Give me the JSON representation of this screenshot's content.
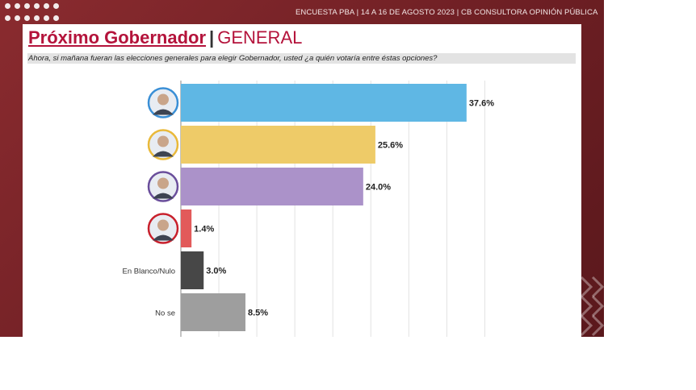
{
  "header": {
    "survey_info": "ENCUESTA PBA | 14 A 16 DE AGOSTO 2023 | CB CONSULTORA OPINIÓN PÚBLICA",
    "title_main": "Próximo Gobernador",
    "title_sep": "|",
    "title_sub": "GENERAL",
    "question": "Ahora, si mañana fueran las elecciones generales para elegir Gobernador, usted ¿a quién votaría entre éstas opciones?"
  },
  "chart_data": {
    "type": "bar",
    "orientation": "horizontal",
    "categories": [
      "",
      "",
      "",
      "",
      "En Blanco/Nulo",
      "No se"
    ],
    "category_kinds": [
      "avatar",
      "avatar",
      "avatar",
      "avatar",
      "text",
      "text"
    ],
    "values": [
      37.6,
      25.6,
      24.0,
      1.4,
      3.0,
      8.5
    ],
    "value_labels": [
      "37.6%",
      "25.6%",
      "24.0%",
      "1.4%",
      "3.0%",
      "8.5%"
    ],
    "colors": [
      "#5fb7e4",
      "#eecb68",
      "#ab92c9",
      "#e25a5a",
      "#474747",
      "#9e9e9e"
    ],
    "avatar_ring_colors": [
      "#3a8fd6",
      "#e9b93a",
      "#6a4e9b",
      "#c8202c"
    ],
    "xlim": [
      0,
      40
    ],
    "grid": true,
    "legend": "none"
  }
}
